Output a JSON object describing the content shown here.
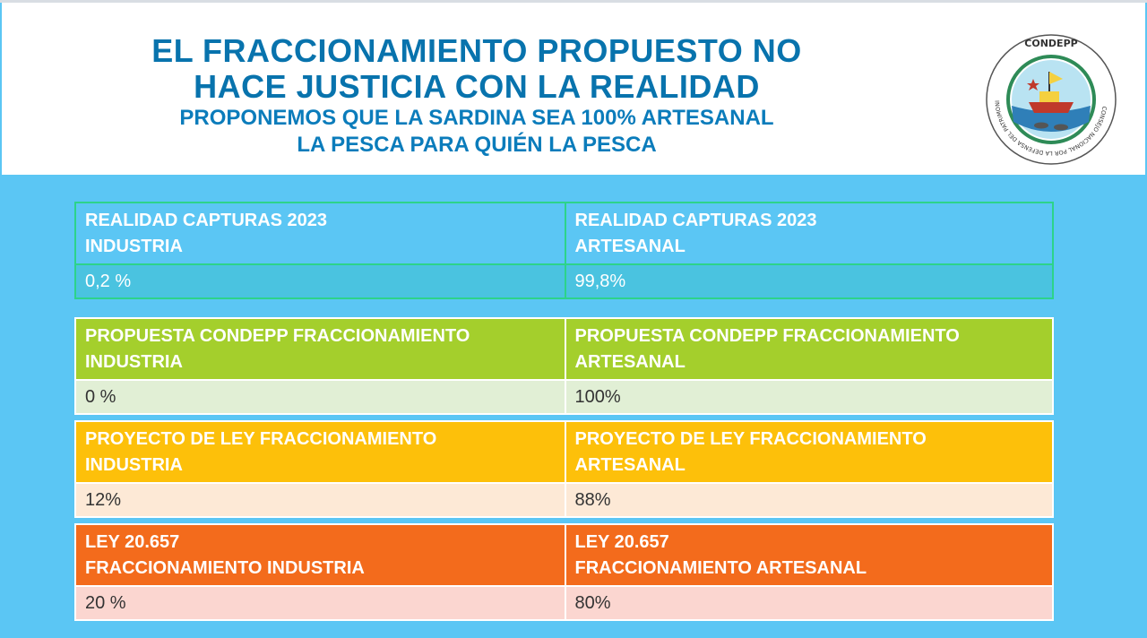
{
  "header": {
    "title_line1": "EL FRACCIONAMIENTO PROPUESTO NO",
    "title_line2": "HACE JUSTICIA CON LA REALIDAD",
    "subtitle_line1": "PROPONEMOS QUE LA SARDINA SEA 100% ARTESANAL",
    "subtitle_line2": "LA PESCA PARA QUIÉN LA PESCA"
  },
  "logo": {
    "top_text": "CONDEPP",
    "ring_text": "CONSEJO NACIONAL POR LA DEFENSA DEL PATRIMONIO PESQUERO"
  },
  "tables": [
    {
      "left_head_line1": "REALIDAD CAPTURAS 2023",
      "left_head_line2": "INDUSTRIA",
      "right_head_line1": "REALIDAD CAPTURAS 2023",
      "right_head_line2": "ARTESANAL",
      "left_value": "0,2 %",
      "right_value": "99,8%"
    },
    {
      "left_head_line1": "PROPUESTA CONDEPP FRACCIONAMIENTO",
      "left_head_line2": "INDUSTRIA",
      "right_head_line1": "PROPUESTA CONDEPP FRACCIONAMIENTO",
      "right_head_line2": "ARTESANAL",
      "left_value": "0 %",
      "right_value": "100%"
    },
    {
      "left_head_line1": "PROYECTO DE LEY FRACCIONAMIENTO",
      "left_head_line2": "INDUSTRIA",
      "right_head_line1": "PROYECTO DE LEY FRACCIONAMIENTO",
      "right_head_line2": "ARTESANAL",
      "left_value": "12%",
      "right_value": "88%"
    },
    {
      "left_head_line1": "LEY 20.657",
      "left_head_line2": "FRACCIONAMIENTO INDUSTRIA",
      "right_head_line1": "LEY 20.657",
      "right_head_line2": "FRACCIONAMIENTO ARTESANAL",
      "left_value": "20 %",
      "right_value": "80%"
    }
  ],
  "colors": {
    "page_background": "#5bc6f4",
    "title_blue": "#0873ad",
    "realidad_value_bg": "#4ac3e0",
    "propuesta_green": "#a4cf2c",
    "proyecto_yellow": "#fdc00a",
    "ley_orange": "#f36b1c"
  }
}
